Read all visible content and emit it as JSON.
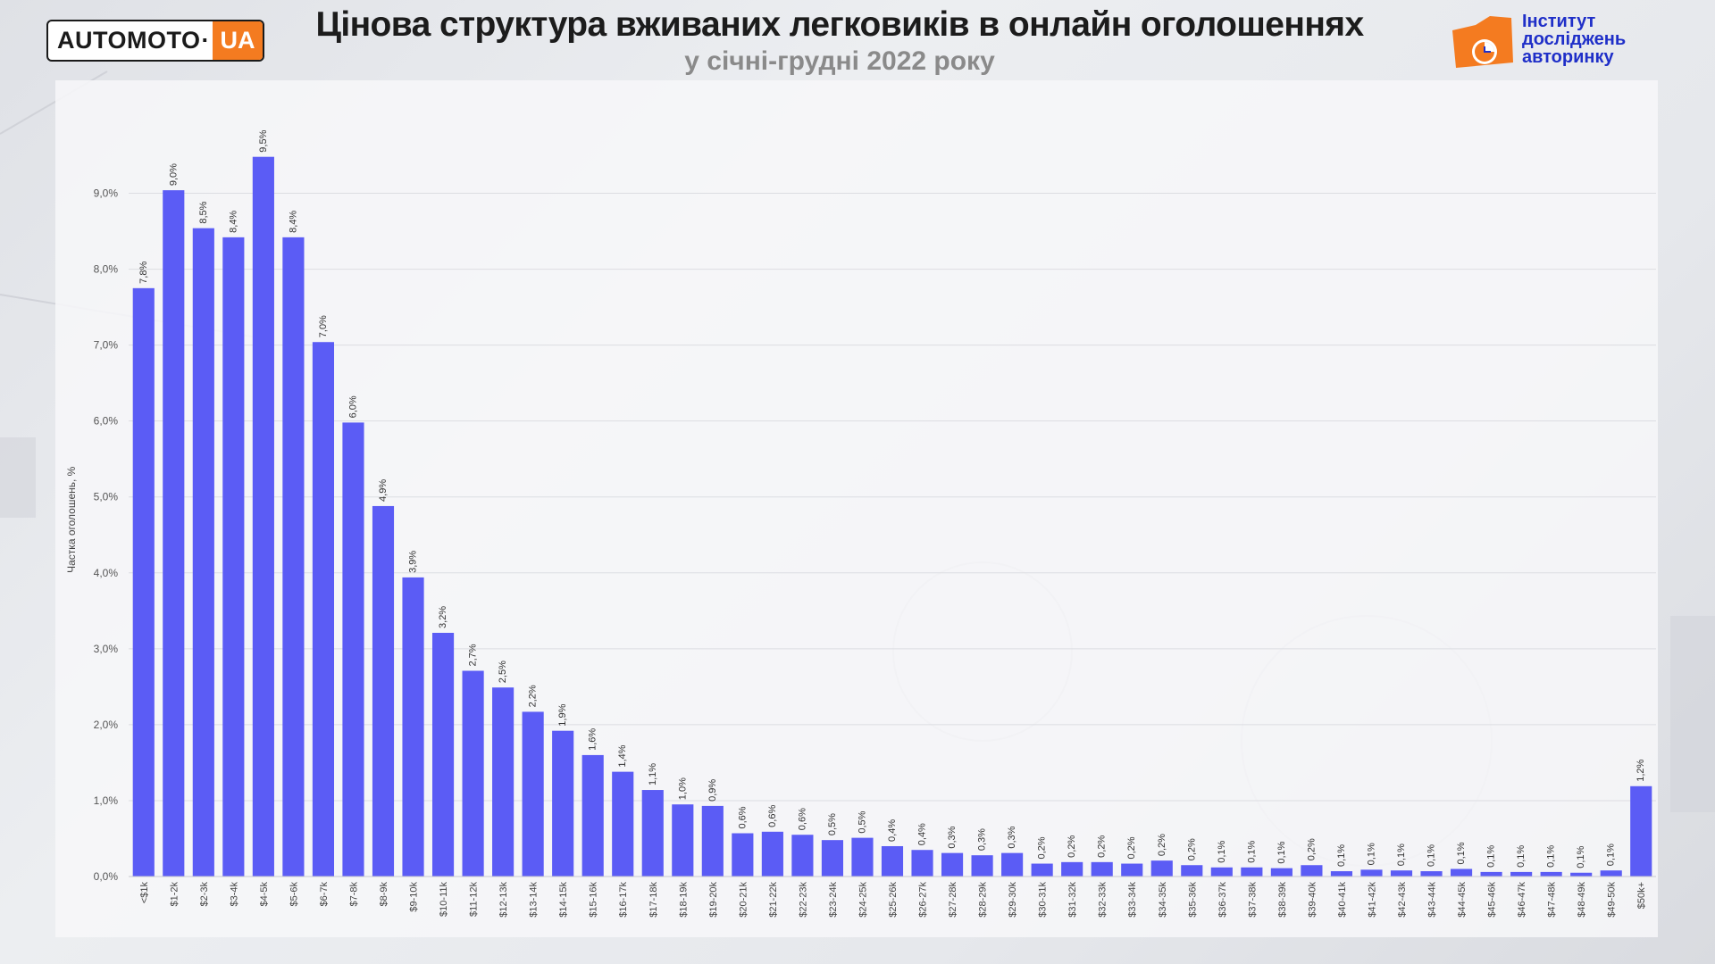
{
  "header": {
    "brand_left": "AUTOMOTO",
    "brand_left_accent": "UA",
    "title": "Цінова структура вживаних легковиків в онлайн оголошеннях",
    "subtitle": "у січні-грудні 2022 року",
    "brand_right_lines": [
      "Інститут",
      "досліджень",
      "авторинку"
    ]
  },
  "colors": {
    "bar": "#5b5cf5",
    "accent_orange": "#f47b20",
    "accent_blue": "#1f2fc8"
  },
  "chart_data": {
    "type": "bar",
    "title": "",
    "xlabel": "",
    "ylabel": "Частка оголошень, %",
    "ylim": [
      0,
      9.5
    ],
    "yticks": [
      0,
      1,
      2,
      3,
      4,
      5,
      6,
      7,
      8,
      9
    ],
    "ytick_labels": [
      "0,0%",
      "1,0%",
      "2,0%",
      "3,0%",
      "4,0%",
      "5,0%",
      "6,0%",
      "7,0%",
      "8,0%",
      "9,0%"
    ],
    "grid": true,
    "categories": [
      "<$1k",
      "$1-2k",
      "$2-3k",
      "$3-4k",
      "$4-5k",
      "$5-6k",
      "$6-7k",
      "$7-8k",
      "$8-9k",
      "$9-10k",
      "$10-11k",
      "$11-12k",
      "$12-13k",
      "$13-14k",
      "$14-15k",
      "$15-16k",
      "$16-17k",
      "$17-18k",
      "$18-19k",
      "$19-20k",
      "$20-21k",
      "$21-22k",
      "$22-23k",
      "$23-24k",
      "$24-25k",
      "$25-26k",
      "$26-27k",
      "$27-28k",
      "$28-29k",
      "$29-30k",
      "$30-31k",
      "$31-32k",
      "$32-33k",
      "$33-34k",
      "$34-35k",
      "$35-36k",
      "$36-37k",
      "$37-38k",
      "$38-39k",
      "$39-40k",
      "$40-41k",
      "$41-42k",
      "$42-43k",
      "$43-44k",
      "$44-45k",
      "$45-46k",
      "$46-47k",
      "$47-48k",
      "$48-49k",
      "$49-50k",
      "$50k+"
    ],
    "values": [
      7.8,
      9.0,
      8.5,
      8.4,
      9.5,
      8.4,
      7.0,
      6.0,
      4.9,
      3.9,
      3.2,
      2.7,
      2.5,
      2.2,
      1.9,
      1.6,
      1.4,
      1.1,
      1.0,
      0.9,
      0.6,
      0.6,
      0.6,
      0.5,
      0.5,
      0.4,
      0.4,
      0.3,
      0.3,
      0.3,
      0.2,
      0.2,
      0.2,
      0.2,
      0.2,
      0.2,
      0.1,
      0.1,
      0.1,
      0.2,
      0.1,
      0.1,
      0.1,
      0.1,
      0.1,
      0.1,
      0.1,
      0.1,
      0.1,
      0.1,
      1.2
    ],
    "value_labels": [
      "7,8%",
      "9,0%",
      "8,5%",
      "8,4%",
      "9,5%",
      "8,4%",
      "7,0%",
      "6,0%",
      "4,9%",
      "3,9%",
      "3,2%",
      "2,7%",
      "2,5%",
      "2,2%",
      "1,9%",
      "1,6%",
      "1,4%",
      "1,1%",
      "1,0%",
      "0,9%",
      "0,6%",
      "0,6%",
      "0,6%",
      "0,5%",
      "0,5%",
      "0,4%",
      "0,4%",
      "0,3%",
      "0,3%",
      "0,3%",
      "0,2%",
      "0,2%",
      "0,2%",
      "0,2%",
      "0,2%",
      "0,2%",
      "0,1%",
      "0,1%",
      "0,1%",
      "0,2%",
      "0,1%",
      "0,1%",
      "0,1%",
      "0,1%",
      "0,1%",
      "0,1%",
      "0,1%",
      "0,1%",
      "0,1%",
      "0,1%",
      "1,2%"
    ],
    "bar_heights_exact": [
      7.75,
      9.04,
      8.54,
      8.42,
      9.48,
      8.42,
      7.04,
      5.98,
      4.88,
      3.94,
      3.21,
      2.71,
      2.49,
      2.17,
      1.92,
      1.6,
      1.38,
      1.14,
      0.95,
      0.93,
      0.57,
      0.59,
      0.55,
      0.48,
      0.51,
      0.4,
      0.35,
      0.31,
      0.28,
      0.31,
      0.17,
      0.19,
      0.19,
      0.17,
      0.21,
      0.15,
      0.12,
      0.12,
      0.11,
      0.15,
      0.07,
      0.09,
      0.08,
      0.07,
      0.1,
      0.06,
      0.06,
      0.06,
      0.05,
      0.08,
      1.19
    ]
  }
}
